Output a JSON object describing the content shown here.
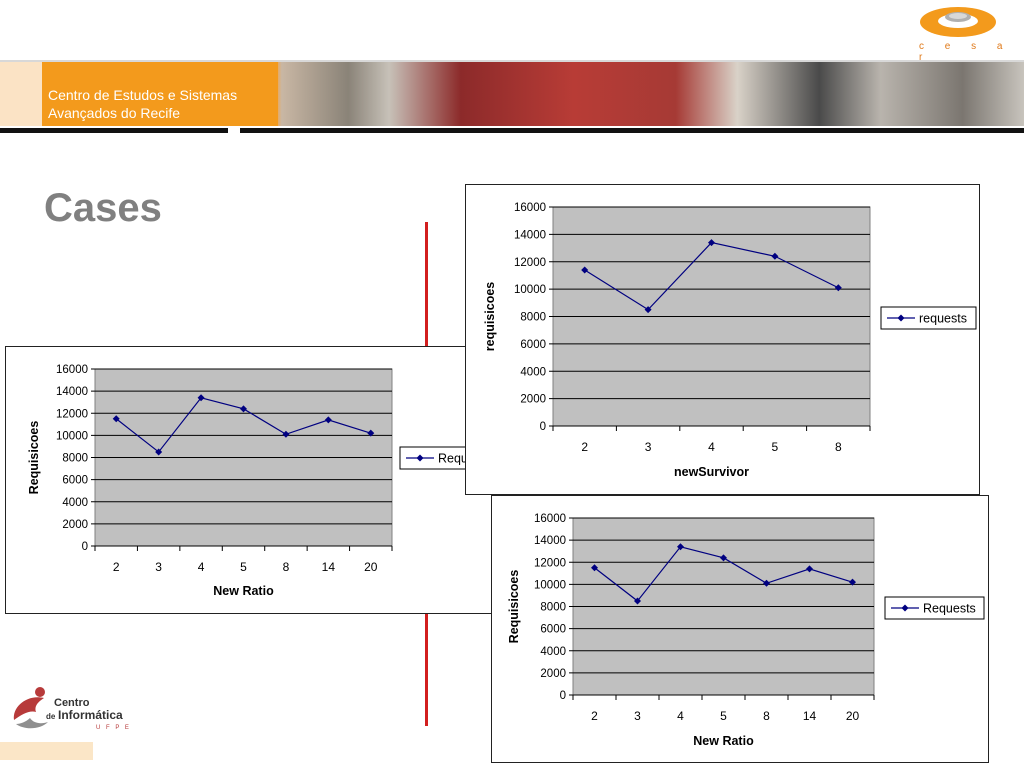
{
  "header": {
    "line1": "Centro de Estudos e Sistemas",
    "line2": "Avançados do Recife"
  },
  "logo": {
    "brand": "c e s a r"
  },
  "slide": {
    "title": "Cases"
  },
  "footer_logo": {
    "line1": "Centro",
    "line2": "de",
    "line3": "Informática",
    "line4": "U F P E"
  },
  "colors": {
    "accent_orange": "#f39a1c",
    "divider_red": "#d21f1f",
    "plot_bg": "#c0c0c0",
    "series_line": "#000080"
  },
  "chart_data": [
    {
      "type": "line",
      "categories": [
        "2",
        "3",
        "4",
        "5",
        "8",
        "14",
        "20"
      ],
      "series": [
        {
          "name": "Requests",
          "values": [
            11500,
            8500,
            13400,
            12400,
            10100,
            11400,
            10200
          ]
        }
      ],
      "xlabel": "New Ratio",
      "ylabel": "Requisicoes",
      "ylim": [
        0,
        16000
      ],
      "yticks": [
        0,
        2000,
        4000,
        6000,
        8000,
        10000,
        12000,
        14000,
        16000
      ],
      "legend_text": "Requ",
      "grid": true,
      "legend": "right"
    },
    {
      "type": "line",
      "categories": [
        "2",
        "3",
        "4",
        "5",
        "8"
      ],
      "series": [
        {
          "name": "requests",
          "values": [
            11400,
            8500,
            13400,
            12400,
            10100
          ]
        }
      ],
      "xlabel": "newSurvivor",
      "ylabel": "requisicoes",
      "ylim": [
        0,
        16000
      ],
      "yticks": [
        0,
        2000,
        4000,
        6000,
        8000,
        10000,
        12000,
        14000,
        16000
      ],
      "legend_text": "requests",
      "grid": true,
      "legend": "right"
    },
    {
      "type": "line",
      "categories": [
        "2",
        "3",
        "4",
        "5",
        "8",
        "14",
        "20"
      ],
      "series": [
        {
          "name": "Requests",
          "values": [
            11500,
            8500,
            13400,
            12400,
            10100,
            11400,
            10200
          ]
        }
      ],
      "xlabel": "New Ratio",
      "ylabel": "Requisicoes",
      "ylim": [
        0,
        16000
      ],
      "yticks": [
        0,
        2000,
        4000,
        6000,
        8000,
        10000,
        12000,
        14000,
        16000
      ],
      "legend_text": "Requests",
      "grid": true,
      "legend": "right"
    }
  ]
}
